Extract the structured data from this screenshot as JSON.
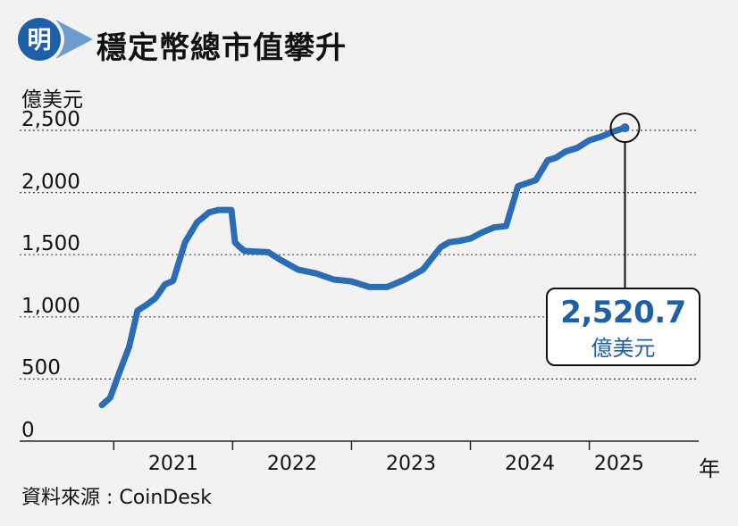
{
  "header": {
    "logo_char": "明",
    "title": "穩定幣總市值攀升",
    "colors": {
      "logo_blue": "#1f5fa6",
      "logo_swoosh": "#6f9ccf"
    }
  },
  "chart_data": {
    "type": "line",
    "title": "穩定幣總市值攀升",
    "ylabel": "億美元",
    "xlabel_unit": "年",
    "ylim": [
      0,
      2500
    ],
    "yticks": [
      0,
      500,
      1000,
      1500,
      2000,
      2500
    ],
    "ytick_labels": [
      "0",
      "500",
      "1,000",
      "1,500",
      "2,000",
      "2,500"
    ],
    "xlim": [
      2020.9,
      2025.95
    ],
    "xticks": [
      2021,
      2022,
      2023,
      2024,
      2025
    ],
    "xtick_labels": [
      "2021",
      "2022",
      "2023",
      "2024",
      "2025"
    ],
    "grid": "horizontal-dotted",
    "line_color": "#2a6db5",
    "series": [
      {
        "x": [
          2020.9,
          2020.97,
          2021.05,
          2021.13,
          2021.2,
          2021.28,
          2021.35,
          2021.43,
          2021.5,
          2021.6,
          2021.7,
          2021.8,
          2021.88,
          2021.95,
          2021.99,
          2022.02,
          2022.05,
          2022.1,
          2022.2,
          2022.3,
          2022.4,
          2022.55,
          2022.7,
          2022.85,
          2023.0,
          2023.15,
          2023.3,
          2023.45,
          2023.6,
          2023.75,
          2023.82,
          2023.9,
          2024.0,
          2024.1,
          2024.2,
          2024.3,
          2024.4,
          2024.55,
          2024.65,
          2024.72,
          2024.8,
          2024.9,
          2025.0,
          2025.1,
          2025.2,
          2025.3
        ],
        "y": [
          290,
          350,
          560,
          760,
          1050,
          1100,
          1150,
          1260,
          1290,
          1600,
          1760,
          1840,
          1860,
          1860,
          1860,
          1600,
          1570,
          1530,
          1525,
          1520,
          1460,
          1380,
          1350,
          1300,
          1285,
          1240,
          1240,
          1300,
          1380,
          1560,
          1600,
          1610,
          1630,
          1680,
          1720,
          1730,
          2050,
          2100,
          2260,
          2280,
          2330,
          2360,
          2420,
          2450,
          2490,
          2520.7
        ]
      }
    ],
    "annotation": {
      "value": "2,520.7",
      "unit": "億美元",
      "x": 2025.3,
      "y": 2520.7
    }
  },
  "source": "資料來源 : CoinDesk"
}
